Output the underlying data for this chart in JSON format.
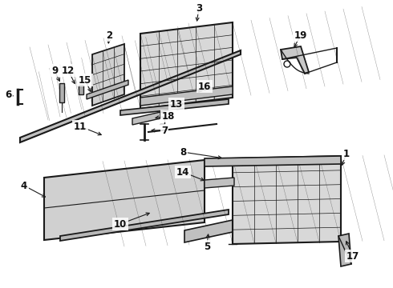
{
  "bg_color": "#ffffff",
  "line_color": "#1a1a1a",
  "label_color": "#111111",
  "label_fontsize": 8.5,
  "label_fontweight": "bold"
}
